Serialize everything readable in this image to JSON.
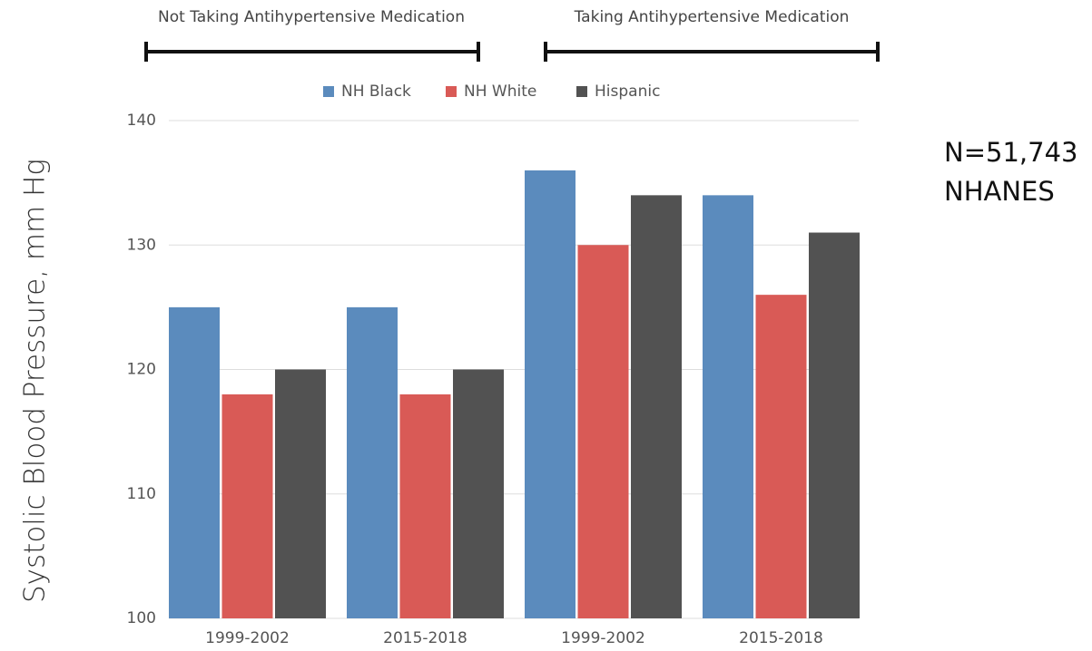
{
  "chart_data": {
    "type": "bar",
    "y_label": "Systolic Blood Pressure, mm Hg",
    "annotations": [
      "Not Taking Antihypertensive Medication",
      "Taking Antihypertensive Medication"
    ],
    "side_notes": [
      "N=51,743",
      "NHANES"
    ],
    "categories": [
      "1999-2002",
      "2015-2018",
      "1999-2002",
      "2015-2018"
    ],
    "series": [
      {
        "name": "NH Black",
        "color": "#5b8bbd",
        "values": [
          125,
          125,
          136,
          134
        ]
      },
      {
        "name": "NH White",
        "color": "#d95a56",
        "values": [
          118,
          118,
          130,
          126
        ]
      },
      {
        "name": "Hispanic",
        "color": "#525252",
        "values": [
          120,
          120,
          134,
          131
        ]
      }
    ],
    "ylim": [
      100,
      140
    ],
    "yticks": [
      100,
      110,
      120,
      130,
      140
    ],
    "grid": true,
    "legend": "top"
  }
}
